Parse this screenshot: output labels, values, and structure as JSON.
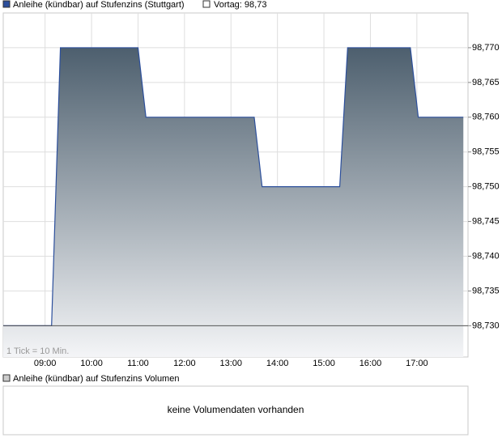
{
  "chart_data": {
    "type": "area",
    "series": [
      {
        "name": "Anleihe (kündbar) auf Stufenzins (Stuttgart)",
        "color": "#2c4f9c",
        "values": [
          98.73,
          98.73,
          98.77,
          98.77,
          98.76,
          98.76,
          98.75,
          98.75,
          98.77,
          98.77,
          98.76,
          98.76
        ]
      }
    ],
    "x": [
      8.1,
      9.14,
      9.33,
      11.0,
      11.17,
      13.5,
      13.67,
      15.34,
      15.51,
      16.86,
      17.03,
      18.0
    ],
    "reference": {
      "name": "Vortag: 98,73",
      "value": 98.73,
      "color": "#555555"
    },
    "xlim": [
      8.1,
      18.1
    ],
    "xticks": [
      {
        "value": 9,
        "label": "09:00"
      },
      {
        "value": 10,
        "label": "10:00"
      },
      {
        "value": 11,
        "label": "11:00"
      },
      {
        "value": 12,
        "label": "12:00"
      },
      {
        "value": 13,
        "label": "13:00"
      },
      {
        "value": 14,
        "label": "14:00"
      },
      {
        "value": 15,
        "label": "15:00"
      },
      {
        "value": 16,
        "label": "16:00"
      },
      {
        "value": 17,
        "label": "17:00"
      }
    ],
    "ylim": [
      98.7255,
      98.775
    ],
    "yticks": [
      {
        "value": 98.73,
        "label": "98,730"
      },
      {
        "value": 98.735,
        "label": "98,735"
      },
      {
        "value": 98.74,
        "label": "98,740"
      },
      {
        "value": 98.745,
        "label": "98,745"
      },
      {
        "value": 98.75,
        "label": "98,750"
      },
      {
        "value": 98.755,
        "label": "98,755"
      },
      {
        "value": 98.76,
        "label": "98,760"
      },
      {
        "value": 98.765,
        "label": "98,765"
      },
      {
        "value": 98.77,
        "label": "98,770"
      }
    ],
    "grid": true,
    "note": "1 Tick = 10 Min."
  },
  "volume_panel": {
    "legend": "Anleihe (kündbar) auf Stufenzins Volumen",
    "message": "keine Volumendaten vorhanden"
  }
}
